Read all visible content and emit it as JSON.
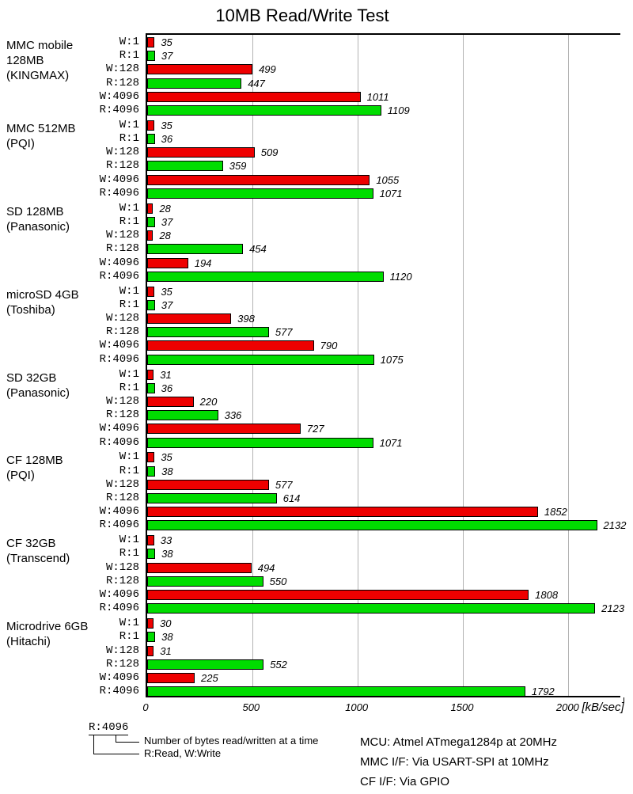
{
  "title": "10MB Read/Write Test",
  "chart_data": {
    "type": "bar",
    "orientation": "horizontal",
    "title": "10MB Read/Write Test",
    "xlabel": "[kB/sec]",
    "unit_label": "[kB/sec]",
    "x_ticks": [
      0,
      500,
      1000,
      1500,
      2000
    ],
    "xlim": [
      0,
      2250
    ],
    "grid": true,
    "bar_labels": [
      "W:1",
      "R:1",
      "W:128",
      "R:128",
      "W:4096",
      "R:4096"
    ],
    "colors": {
      "write": "#ee0000",
      "read": "#00dd00",
      "grid": "#b3b3b3"
    },
    "groups": [
      {
        "label_lines": [
          "MMC mobile",
          "128MB",
          "(KINGMAX)"
        ],
        "values": [
          35,
          37,
          499,
          447,
          1011,
          1109
        ]
      },
      {
        "label_lines": [
          "MMC 512MB",
          "(PQI)"
        ],
        "values": [
          35,
          36,
          509,
          359,
          1055,
          1071
        ]
      },
      {
        "label_lines": [
          "SD 128MB",
          "(Panasonic)"
        ],
        "values": [
          28,
          37,
          28,
          454,
          194,
          1120
        ]
      },
      {
        "label_lines": [
          "microSD 4GB",
          "(Toshiba)"
        ],
        "values": [
          35,
          37,
          398,
          577,
          790,
          1075
        ]
      },
      {
        "label_lines": [
          "SD 32GB",
          "(Panasonic)"
        ],
        "values": [
          31,
          36,
          220,
          336,
          727,
          1071
        ]
      },
      {
        "label_lines": [
          "CF 128MB",
          "(PQI)"
        ],
        "values": [
          35,
          38,
          577,
          614,
          1852,
          2132
        ]
      },
      {
        "label_lines": [
          "CF 32GB",
          "(Transcend)"
        ],
        "values": [
          33,
          38,
          494,
          550,
          1808,
          2123
        ]
      },
      {
        "label_lines": [
          "Microdrive 6GB",
          "(Hitachi)"
        ],
        "values": [
          30,
          38,
          31,
          552,
          225,
          1792
        ]
      }
    ]
  },
  "legend": {
    "example_label": "R:4096",
    "note_bytes": "Number of bytes read/written at a time",
    "note_rw": "R:Read, W:Write"
  },
  "info": {
    "mcu": "MCU: Atmel ATmega1284p at 20MHz",
    "mmc_if": "MMC I/F: Via USART-SPI at 10MHz",
    "cf_if": "CF I/F: Via GPIO"
  }
}
